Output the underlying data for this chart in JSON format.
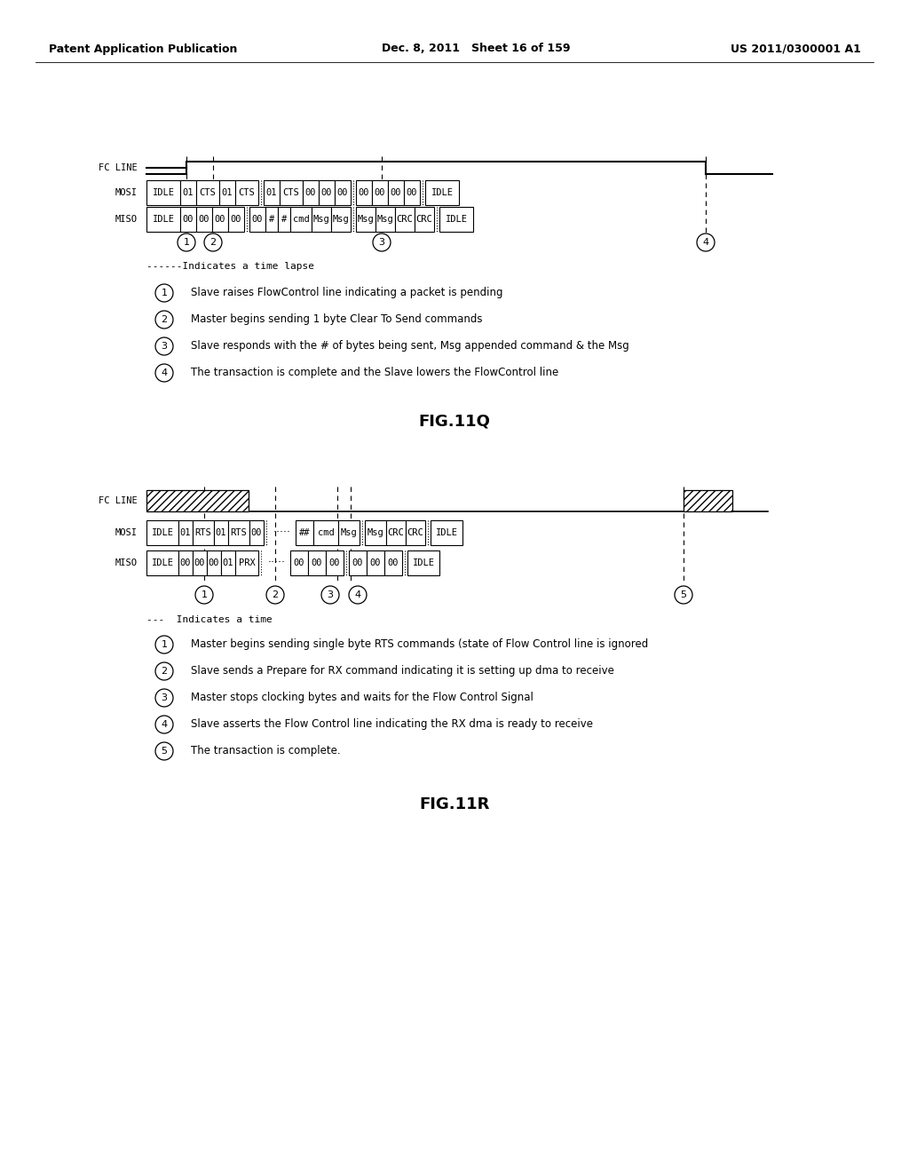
{
  "header_left": "Patent Application Publication",
  "header_mid": "Dec. 8, 2011   Sheet 16 of 159",
  "header_right": "US 2011/0300001 A1",
  "fig_title_1": "FIG.11Q",
  "fig_title_2": "FIG.11R",
  "legend_dashed_1": "------Indicates a time lapse",
  "legend_dashed_2": "---  Indicates a time",
  "notes_1": [
    [
      "1",
      "Slave raises FlowControl line indicating a packet is pending"
    ],
    [
      "2",
      "Master begins sending 1 byte Clear To Send commands"
    ],
    [
      "3",
      "Slave responds with the # of bytes being sent, Msg appended command & the Msg"
    ],
    [
      "4",
      "The transaction is complete and the Slave lowers the FlowControl line"
    ]
  ],
  "notes_2": [
    [
      "1",
      "Master begins sending single byte RTS commands (state of Flow Control line is ignored"
    ],
    [
      "2",
      "Slave sends a Prepare for RX command indicating it is setting up dma to receive"
    ],
    [
      "3",
      "Master stops clocking bytes and waits for the Flow Control Signal"
    ],
    [
      "4",
      "Slave asserts the Flow Control line indicating the RX dma is ready to receive"
    ],
    [
      "5",
      "The transaction is complete."
    ]
  ],
  "bg_color": "#ffffff"
}
